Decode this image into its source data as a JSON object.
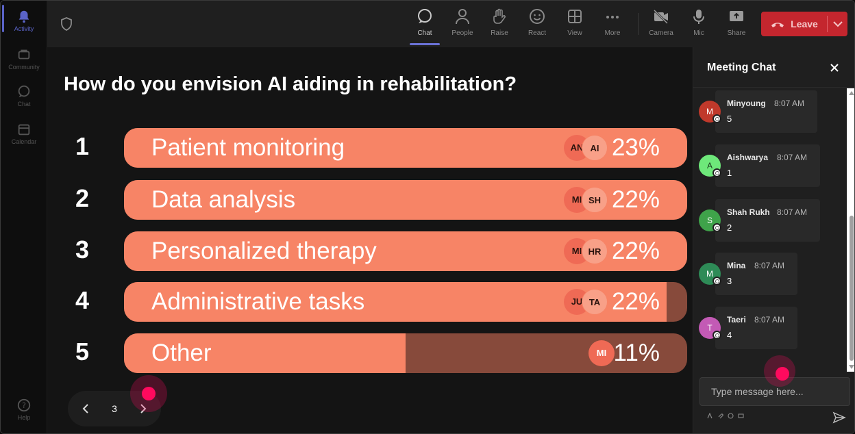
{
  "rail": {
    "items": [
      {
        "label": "Activity",
        "icon": "bell-icon",
        "active": true
      },
      {
        "label": "Community",
        "icon": "community-icon",
        "active": false
      },
      {
        "label": "Chat",
        "icon": "chat-icon",
        "active": false
      },
      {
        "label": "Calendar",
        "icon": "calendar-icon",
        "active": false
      }
    ],
    "help_label": "Help"
  },
  "toolbar": {
    "items": [
      {
        "label": "Chat",
        "icon": "chat-icon",
        "active": true
      },
      {
        "label": "People",
        "icon": "people-icon",
        "active": false
      },
      {
        "label": "Raise",
        "icon": "raise-hand-icon",
        "active": false
      },
      {
        "label": "React",
        "icon": "react-icon",
        "active": false
      },
      {
        "label": "View",
        "icon": "view-icon",
        "active": false
      },
      {
        "label": "More",
        "icon": "more-icon",
        "active": false
      },
      {
        "label": "Camera",
        "icon": "camera-off-icon",
        "active": false
      },
      {
        "label": "Mic",
        "icon": "mic-icon",
        "active": false
      },
      {
        "label": "Share",
        "icon": "share-icon",
        "active": false
      }
    ],
    "leave_label": "Leave"
  },
  "poll": {
    "question": "How do you envision AI aiding in rehabilitation?",
    "options": [
      {
        "number": "1",
        "label": "Patient monitoring",
        "percent_label": "23%",
        "fill_fraction": 1.0,
        "avatars": [
          "AN",
          "AI"
        ]
      },
      {
        "number": "2",
        "label": "Data analysis",
        "percent_label": "22%",
        "fill_fraction": 1.0,
        "avatars": [
          "MI",
          "SH"
        ]
      },
      {
        "number": "3",
        "label": "Personalized therapy",
        "percent_label": "22%",
        "fill_fraction": 1.0,
        "avatars": [
          "MI",
          "HR"
        ]
      },
      {
        "number": "4",
        "label": "Administrative tasks",
        "percent_label": "22%",
        "fill_fraction": 0.964,
        "avatars": [
          "JU",
          "TA"
        ]
      },
      {
        "number": "5",
        "label": "Other",
        "percent_label": "11%",
        "fill_fraction": 0.5,
        "avatars": [
          "MI"
        ]
      }
    ],
    "page": "3"
  },
  "chat": {
    "title": "Meeting Chat",
    "messages": [
      {
        "initial": "M",
        "name": "Minyoung",
        "time": "8:07 AM",
        "text": "5",
        "avatar_color": "#c0392b"
      },
      {
        "initial": "A",
        "name": "Aishwarya",
        "time": "8:07 AM",
        "text": "1",
        "avatar_color": "#6ee87a"
      },
      {
        "initial": "S",
        "name": "Shah Rukh",
        "time": "8:07 AM",
        "text": "2",
        "avatar_color": "#3fa34a"
      },
      {
        "initial": "M",
        "name": "Mina",
        "time": "8:07 AM",
        "text": "3",
        "avatar_color": "#2e8b57"
      },
      {
        "initial": "T",
        "name": "Taeri",
        "time": "8:07 AM",
        "text": "4",
        "avatar_color": "#c35ab5"
      }
    ],
    "input_placeholder": "Type message here..."
  },
  "colors": {
    "bar_fill": "#f78466",
    "bar_track": "#874a3b",
    "leave": "#c4262e",
    "accent": "#6a72d6"
  }
}
